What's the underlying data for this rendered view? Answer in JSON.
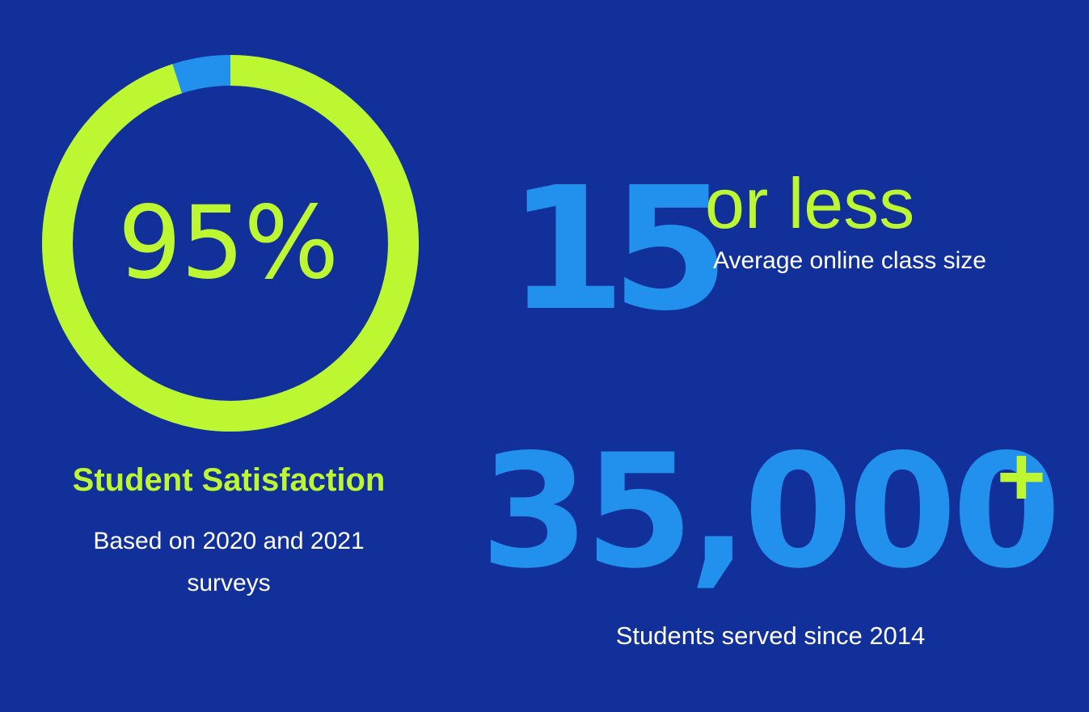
{
  "colors": {
    "background": "#12309a",
    "accent_green": "#bdf732",
    "accent_blue": "#2291ee",
    "text_white": "#ffffff"
  },
  "satisfaction": {
    "percent_text": "95%",
    "fraction": 0.95,
    "title": "Student Satisfaction",
    "subtitle": "Based on 2020 and 2021 surveys"
  },
  "class_size": {
    "number": "15",
    "qualifier": "or less",
    "label": "Average online class size"
  },
  "students": {
    "number": "35,000",
    "suffix": "+",
    "label": "Students served since 2014"
  }
}
